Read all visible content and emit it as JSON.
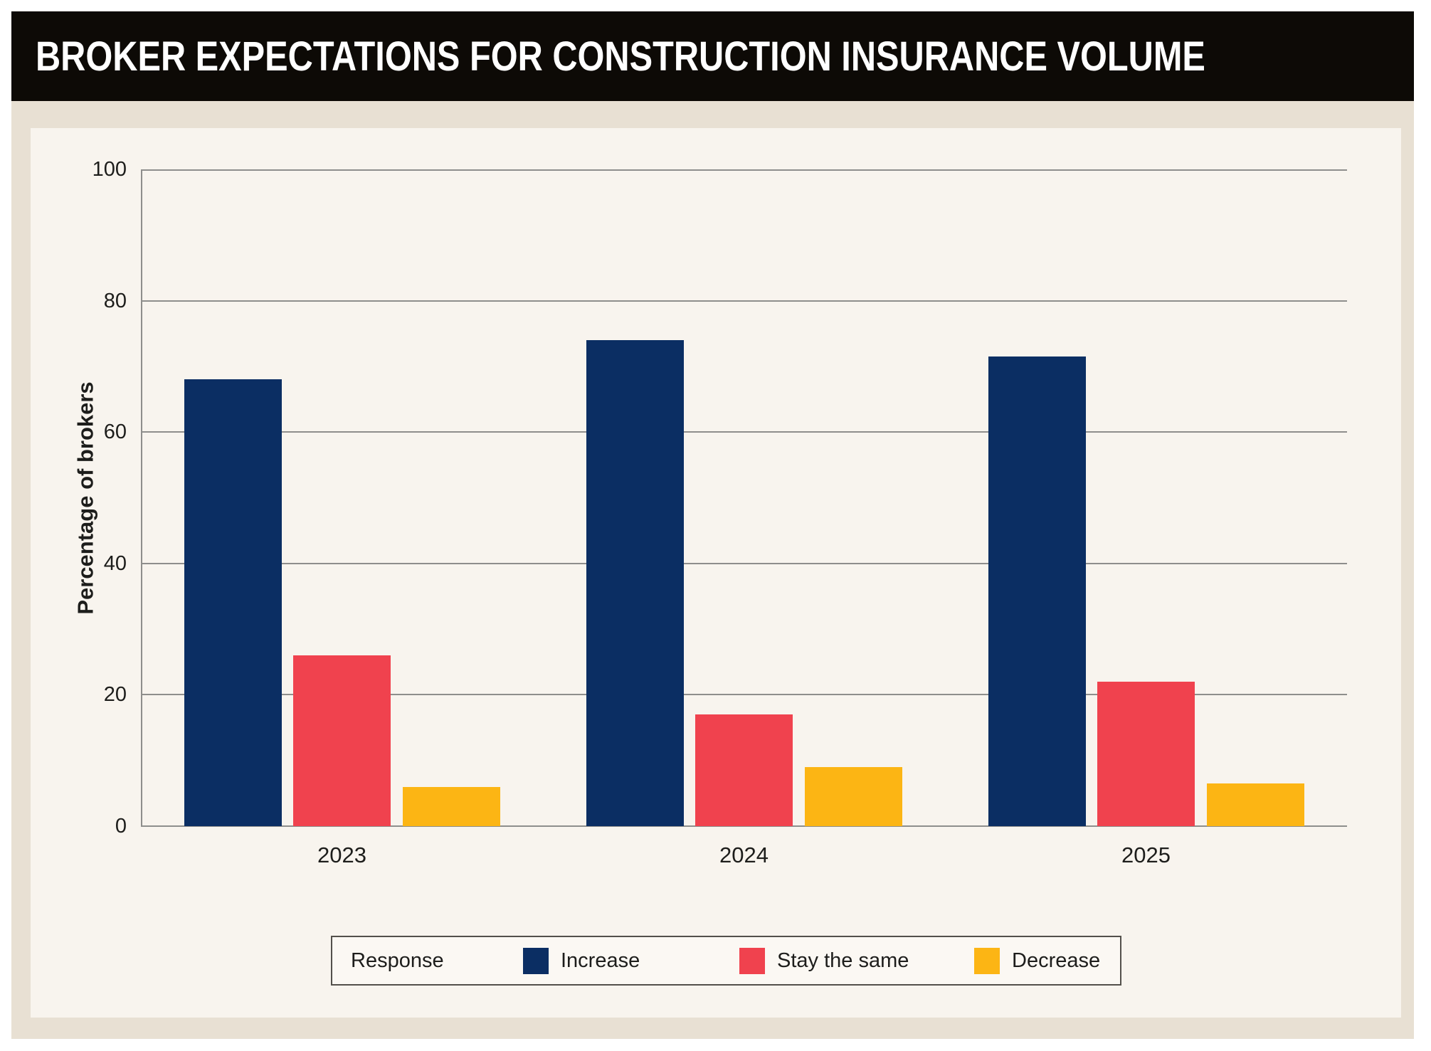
{
  "page": {
    "title": "BROKER EXPECTATIONS FOR CONSTRUCTION INSURANCE VOLUME"
  },
  "colors": {
    "page_bg": "#ffffff",
    "outer_bg": "#e8e0d3",
    "panel_bg": "#f8f4ee",
    "title_bar_bg": "#0d0a06",
    "title_text": "#ffffff",
    "grid": "#8e8e8c",
    "text": "#1d1d1b",
    "legend_bg": "#fbf8f3",
    "legend_border": "#53504b",
    "increase": "#0b2e63",
    "stay_the_same": "#f0424e",
    "decrease": "#fcb514"
  },
  "chart_data": {
    "type": "bar",
    "title": "BROKER EXPECTATIONS FOR CONSTRUCTION INSURANCE VOLUME",
    "categories": [
      "2023",
      "2024",
      "2025"
    ],
    "series": [
      {
        "name": "Increase",
        "color": "#0b2e63",
        "values": [
          68,
          74,
          71.5
        ]
      },
      {
        "name": "Stay the same",
        "color": "#f0424e",
        "values": [
          26,
          17,
          22
        ]
      },
      {
        "name": "Decrease",
        "color": "#fcb514",
        "values": [
          6,
          9,
          6.5
        ]
      }
    ],
    "xlabel": "",
    "ylabel": "Percentage of brokers",
    "ylim": [
      0,
      100
    ],
    "ytick_step": 20,
    "ytick_labels": [
      "0",
      "20",
      "40",
      "60",
      "80",
      "100"
    ],
    "grid": "horizontal",
    "legend_position": "bottom",
    "legend_title": "Response"
  }
}
